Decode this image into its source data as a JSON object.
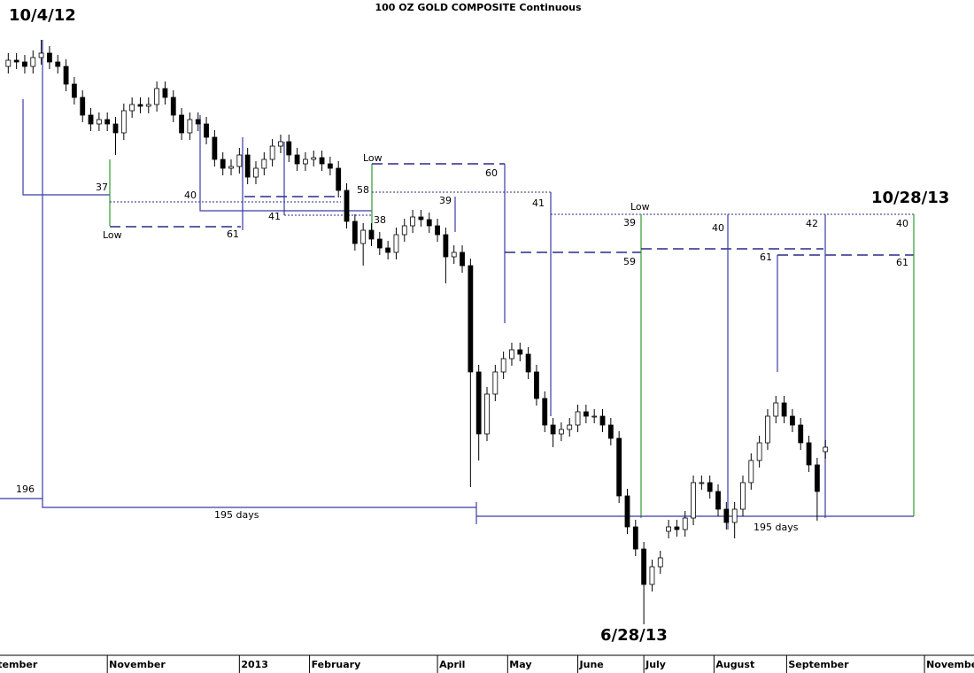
{
  "chart_data": {
    "type": "candlestick",
    "title": "100 OZ GOLD COMPOSITE Continuous",
    "up_color": "#ffffff",
    "down_color": "#000000",
    "edge_color": "#000000",
    "ylim": [
      1100,
      1840
    ],
    "xlim": [
      0,
      118
    ],
    "xticks": [
      {
        "value": -3,
        "label": "September"
      },
      {
        "value": 13,
        "label": "November"
      },
      {
        "value": 29,
        "label": "2013"
      },
      {
        "value": 37.5,
        "label": "February"
      },
      {
        "value": 53,
        "label": "April"
      },
      {
        "value": 61.5,
        "label": "May"
      },
      {
        "value": 70,
        "label": "June"
      },
      {
        "value": 78,
        "label": "July"
      },
      {
        "value": 86.5,
        "label": "August"
      },
      {
        "value": 95.3,
        "label": "September"
      },
      {
        "value": 112,
        "label": "November"
      }
    ],
    "open": [
      1765,
      1772,
      1770,
      1765,
      1775,
      1780,
      1770,
      1765,
      1745,
      1730,
      1710,
      1700,
      1705,
      1700,
      1690,
      1715,
      1722,
      1720,
      1722,
      1740,
      1730,
      1710,
      1690,
      1705,
      1700,
      1685,
      1660,
      1650,
      1652,
      1665,
      1640,
      1650,
      1660,
      1675,
      1680,
      1665,
      1655,
      1660,
      1662,
      1655,
      1650,
      1625,
      1590,
      1565,
      1580,
      1570,
      1560,
      1555,
      1575,
      1585,
      1595,
      1592,
      1585,
      1575,
      1550,
      1555,
      1540,
      1420,
      1350,
      1395,
      1420,
      1435,
      1445,
      1440,
      1420,
      1390,
      1360,
      1350,
      1355,
      1360,
      1375,
      1370,
      1370,
      1360,
      1345,
      1280,
      1245,
      1220,
      1180,
      1200,
      1240,
      1245,
      1242,
      1255,
      1295,
      1295,
      1285,
      1265,
      1250,
      1265,
      1295,
      1320,
      1340,
      1370,
      1385,
      1370,
      1360,
      1340,
      1315,
      1330
    ],
    "high": [
      1780,
      1780,
      1778,
      1783,
      1795,
      1788,
      1778,
      1773,
      1753,
      1738,
      1718,
      1713,
      1713,
      1708,
      1723,
      1730,
      1730,
      1730,
      1748,
      1748,
      1738,
      1718,
      1713,
      1713,
      1708,
      1693,
      1668,
      1660,
      1673,
      1673,
      1658,
      1668,
      1683,
      1688,
      1688,
      1673,
      1668,
      1670,
      1670,
      1663,
      1658,
      1633,
      1598,
      1588,
      1588,
      1578,
      1568,
      1583,
      1593,
      1603,
      1603,
      1600,
      1593,
      1583,
      1563,
      1563,
      1548,
      1428,
      1403,
      1428,
      1443,
      1453,
      1453,
      1448,
      1428,
      1398,
      1368,
      1363,
      1368,
      1383,
      1383,
      1378,
      1378,
      1368,
      1353,
      1288,
      1253,
      1228,
      1208,
      1218,
      1253,
      1253,
      1263,
      1303,
      1303,
      1303,
      1293,
      1273,
      1273,
      1303,
      1328,
      1348,
      1378,
      1393,
      1393,
      1378,
      1368,
      1348,
      1323,
      1343
    ],
    "low": [
      1757,
      1762,
      1757,
      1757,
      1767,
      1762,
      1757,
      1737,
      1722,
      1702,
      1692,
      1692,
      1692,
      1665,
      1682,
      1707,
      1712,
      1712,
      1714,
      1722,
      1702,
      1682,
      1682,
      1692,
      1677,
      1652,
      1642,
      1642,
      1644,
      1632,
      1632,
      1642,
      1652,
      1667,
      1657,
      1647,
      1647,
      1652,
      1647,
      1642,
      1617,
      1582,
      1557,
      1540,
      1562,
      1552,
      1547,
      1547,
      1567,
      1577,
      1584,
      1577,
      1567,
      1520,
      1542,
      1532,
      1290,
      1320,
      1342,
      1387,
      1412,
      1427,
      1432,
      1412,
      1382,
      1352,
      1335,
      1342,
      1347,
      1352,
      1362,
      1362,
      1352,
      1337,
      1272,
      1237,
      1212,
      1135,
      1172,
      1192,
      1232,
      1234,
      1234,
      1247,
      1287,
      1277,
      1257,
      1242,
      1232,
      1257,
      1287,
      1312,
      1332,
      1362,
      1362,
      1352,
      1332,
      1307,
      1252,
      1322
    ],
    "close": [
      1772,
      1770,
      1765,
      1775,
      1780,
      1770,
      1765,
      1745,
      1730,
      1710,
      1700,
      1705,
      1700,
      1690,
      1715,
      1722,
      1720,
      1722,
      1740,
      1730,
      1710,
      1690,
      1705,
      1700,
      1685,
      1660,
      1650,
      1652,
      1665,
      1640,
      1650,
      1660,
      1675,
      1680,
      1665,
      1655,
      1660,
      1662,
      1655,
      1650,
      1625,
      1590,
      1565,
      1580,
      1570,
      1560,
      1555,
      1575,
      1585,
      1595,
      1592,
      1585,
      1575,
      1550,
      1555,
      1540,
      1420,
      1350,
      1395,
      1420,
      1435,
      1445,
      1440,
      1420,
      1390,
      1360,
      1350,
      1355,
      1360,
      1375,
      1370,
      1370,
      1360,
      1345,
      1280,
      1245,
      1220,
      1180,
      1200,
      1210,
      1245,
      1242,
      1255,
      1295,
      1295,
      1285,
      1265,
      1250,
      1265,
      1295,
      1320,
      1340,
      1370,
      1385,
      1370,
      1360,
      1340,
      1315,
      1285,
      1335
    ],
    "annotations": [
      "10/4/12",
      "10/28/13",
      "6/28/13",
      "Low",
      "Low",
      "Low",
      "37",
      "40",
      "61",
      "41",
      "58",
      "38",
      "39",
      "60",
      "41",
      "39",
      "59",
      "40",
      "61",
      "42",
      "40",
      "61",
      "196",
      "195 days",
      "195 days"
    ]
  }
}
